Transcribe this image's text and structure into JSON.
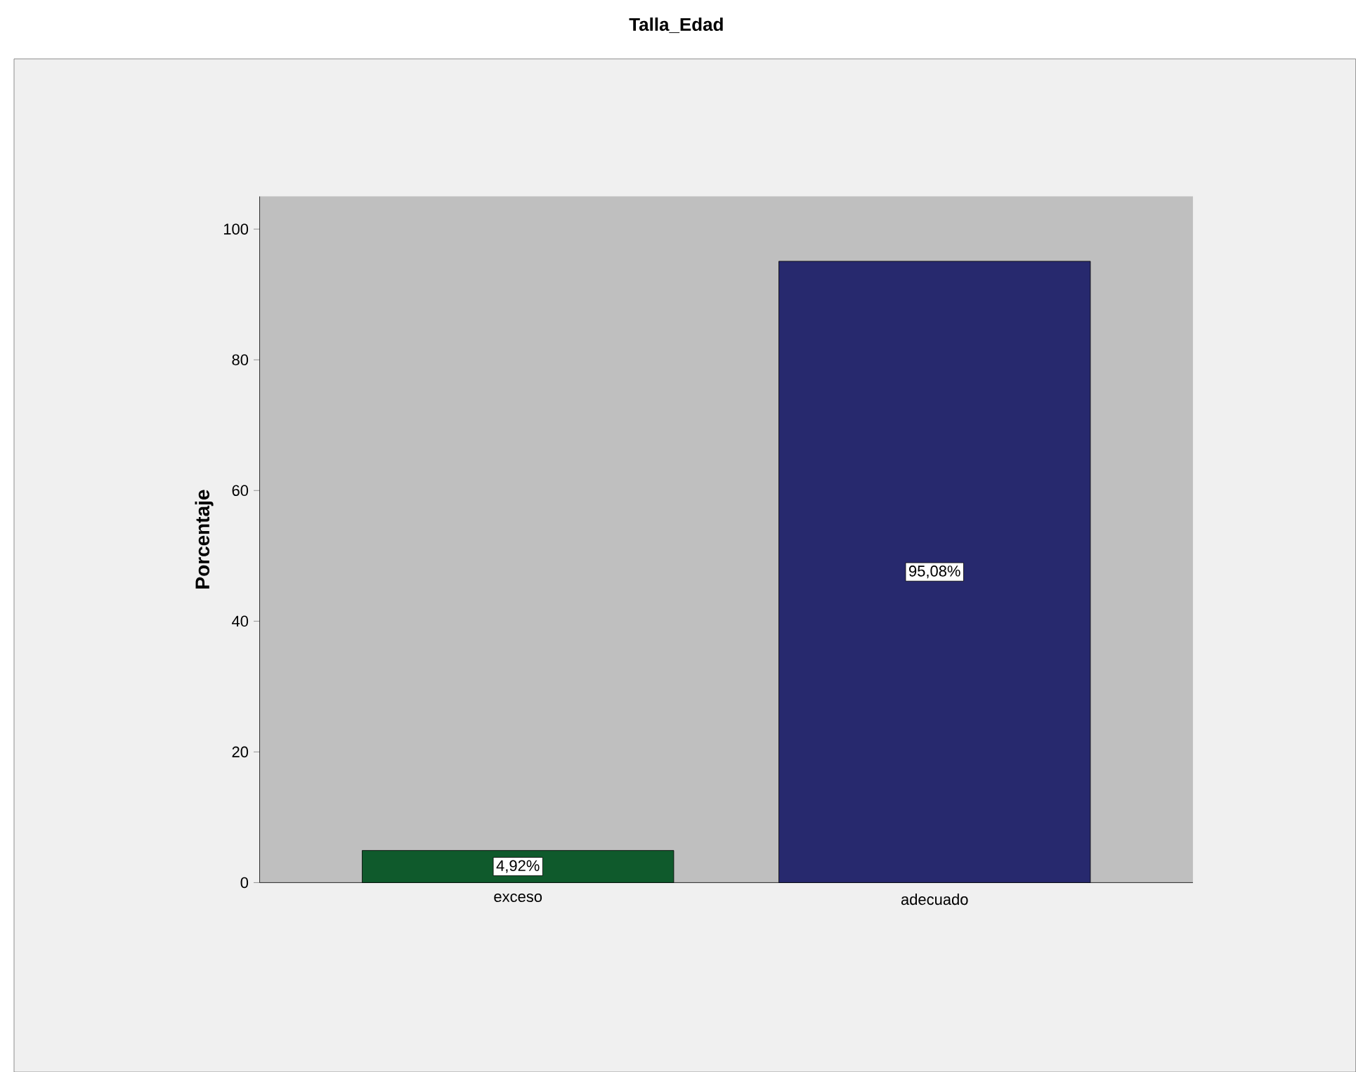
{
  "chart_data": {
    "type": "bar",
    "title": "Talla_Edad",
    "ylabel": "Porcentaje",
    "categories": [
      "exceso",
      "adecuado"
    ],
    "values": [
      4.92,
      95.08
    ],
    "value_labels": [
      "4,92%",
      "95,08%"
    ],
    "colors": [
      "#0f5a2c",
      "#27296e"
    ],
    "ylim": [
      0,
      105
    ],
    "yticks": [
      0,
      20,
      40,
      60,
      80,
      100
    ]
  }
}
